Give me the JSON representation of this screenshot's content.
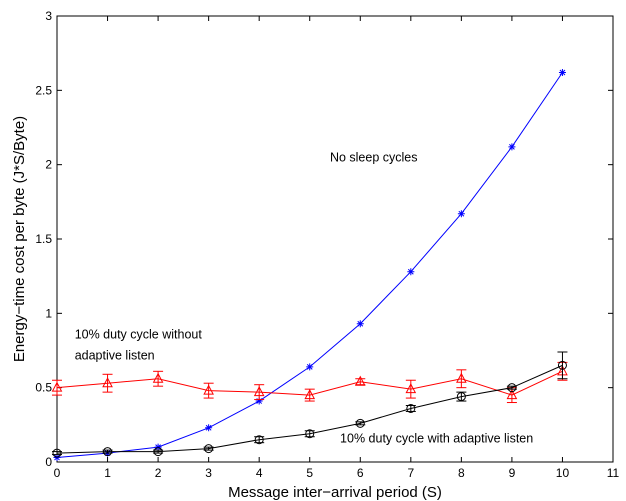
{
  "chart_data": {
    "type": "line",
    "title": "",
    "xlabel": "Message inter−arrival period (S)",
    "ylabel": "Energy−time cost per byte (J*S/Byte)",
    "xlim": [
      0,
      11
    ],
    "ylim": [
      0,
      3
    ],
    "xticks": [
      "0",
      "1",
      "2",
      "3",
      "4",
      "5",
      "6",
      "7",
      "8",
      "9",
      "10",
      "11"
    ],
    "yticks": [
      "0",
      "0.5",
      "1",
      "1.5",
      "2",
      "2.5",
      "3"
    ],
    "grid": false,
    "x": [
      0,
      1,
      2,
      3,
      4,
      5,
      6,
      7,
      8,
      9,
      10
    ],
    "series": [
      {
        "color": "#0000ff",
        "marker": "asterisk",
        "values": [
          0.03,
          0.06,
          0.1,
          0.23,
          0.41,
          0.64,
          0.93,
          1.28,
          1.67,
          2.12,
          2.62
        ],
        "error": [
          0,
          0,
          0,
          0,
          0,
          0,
          0,
          0,
          0,
          0,
          0
        ]
      },
      {
        "color": "#ff0000",
        "marker": "triangle",
        "values": [
          0.5,
          0.53,
          0.56,
          0.48,
          0.47,
          0.45,
          0.54,
          0.49,
          0.56,
          0.45,
          0.61
        ],
        "error": [
          0.05,
          0.06,
          0.05,
          0.05,
          0.05,
          0.04,
          0.02,
          0.06,
          0.06,
          0.05,
          0.06
        ]
      },
      {
        "color": "#000000",
        "marker": "circle",
        "values": [
          0.06,
          0.07,
          0.07,
          0.09,
          0.15,
          0.19,
          0.26,
          0.36,
          0.44,
          0.5,
          0.65
        ],
        "error": [
          0.01,
          0.01,
          0.01,
          0.01,
          0.02,
          0.02,
          0.01,
          0.02,
          0.03,
          0.01,
          0.09
        ]
      }
    ],
    "annotations": [
      {
        "text": "No sleep cycles",
        "x": 5.4,
        "y": 2.02
      },
      {
        "text": "10% duty cycle without",
        "x": 0.35,
        "y": 0.83
      },
      {
        "text": "adaptive listen",
        "x": 0.35,
        "y": 0.69
      },
      {
        "text": "10% duty cycle with adaptive listen",
        "x": 5.6,
        "y": 0.13
      }
    ]
  }
}
